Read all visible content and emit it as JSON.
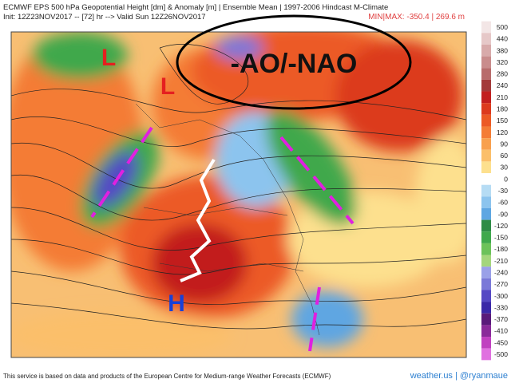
{
  "header": {
    "line1": "ECMWF EPS 500 hPa Geopotential Height [dm] & Anomaly [m] | Ensemble Mean | 1997-2006 Hindcast M-Climate",
    "line2": "Init: 12Z23NOV2017 -- [72] hr --> Valid Sun 12Z26NOV2017",
    "minmax": "MIN|MAX: -350.4 | 269.6 m"
  },
  "annotations": {
    "low1": "L",
    "low2": "L",
    "high": "H",
    "pattern": "-AO/-NAO"
  },
  "colorbar": {
    "labels": [
      500,
      440,
      380,
      320,
      280,
      240,
      210,
      180,
      150,
      120,
      90,
      60,
      30,
      0,
      -30,
      -60,
      -90,
      -120,
      -150,
      -180,
      -210,
      -240,
      -270,
      -300,
      -330,
      -370,
      -410,
      -450,
      -500
    ],
    "colors": [
      "#f3e6e6",
      "#e6c8c8",
      "#d8aaaa",
      "#c98c8c",
      "#b86c6c",
      "#a33a3a",
      "#c21f1f",
      "#dc3a1e",
      "#ec5a25",
      "#f47c35",
      "#f8a04e",
      "#fbbf6a",
      "#fde08e",
      "#ffffff",
      "#b6dcf4",
      "#8cc4ee",
      "#5ea6e2",
      "#2f8c46",
      "#3fa84c",
      "#6cc25a",
      "#a4d67c",
      "#9aa0e8",
      "#7a78d8",
      "#5548c4",
      "#3a28a8",
      "#5a1a7a",
      "#8a2a9a",
      "#c040c0",
      "#e070e0"
    ]
  },
  "footer": {
    "credit": "This service is based on data and products of the European Centre for Medium-range Weather Forecasts (ECMWF)",
    "site": "weather.us | @ryanmaue"
  }
}
